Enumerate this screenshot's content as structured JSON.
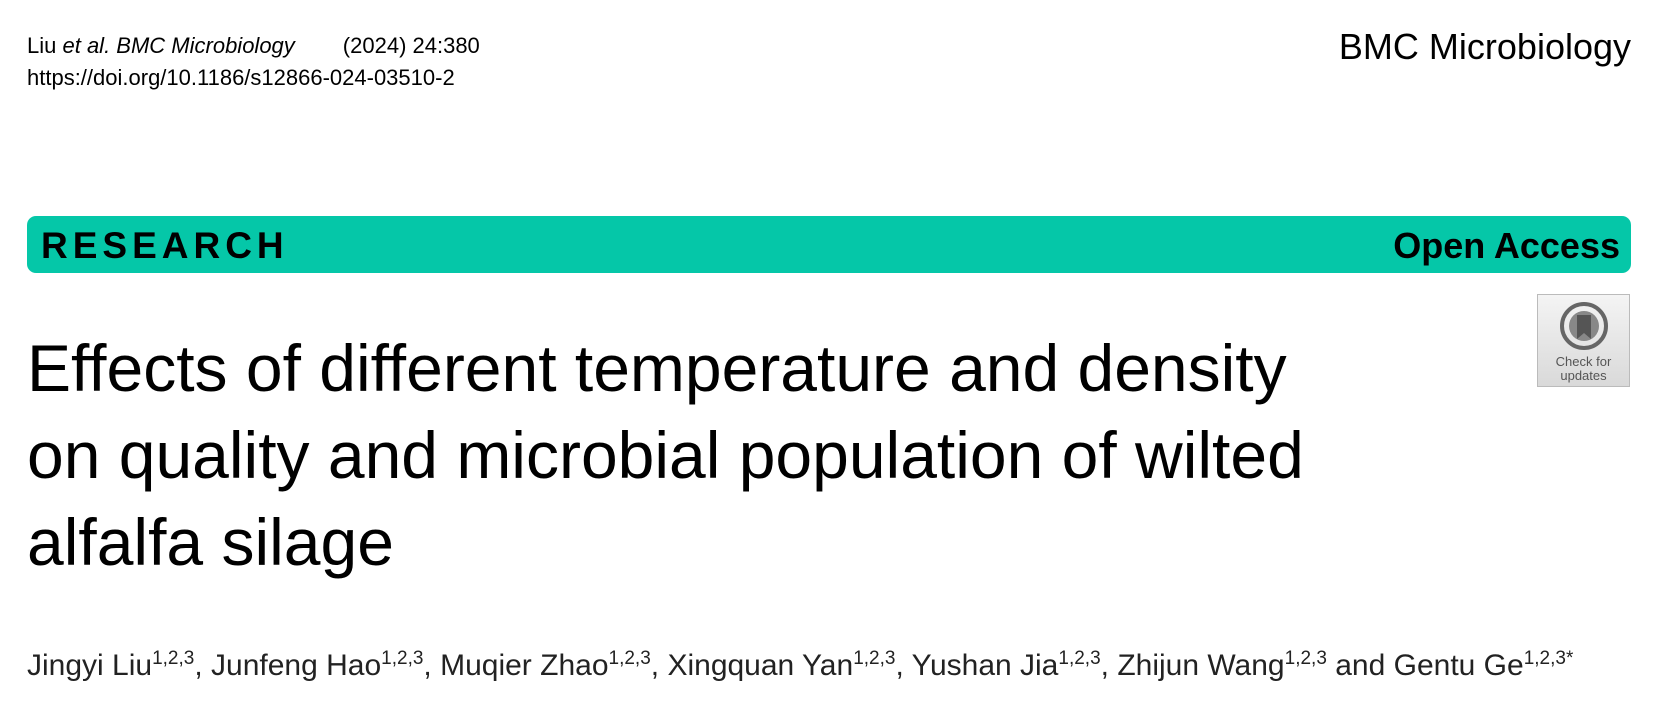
{
  "header": {
    "author_short": "Liu",
    "et_al_journal": "et al. BMC Microbiology",
    "year_volume": "(2024) 24:380",
    "doi": "https://doi.org/10.1186/s12866-024-03510-2",
    "journal": "BMC Microbiology"
  },
  "banner": {
    "left": "RESEARCH",
    "right": "Open Access"
  },
  "badge": {
    "line1": "Check for",
    "line2": "updates"
  },
  "title": [
    "Effects of different temperature and density",
    "on quality and microbial population of wilted",
    "alfalfa silage"
  ],
  "authors": {
    "separator": ", ",
    "last_separator": " and ",
    "list": [
      {
        "name": "Jingyi Liu",
        "affiliations": "1,2,3"
      },
      {
        "name": "Junfeng Hao",
        "affiliations": "1,2,3"
      },
      {
        "name": "Muqier Zhao",
        "affiliations": "1,2,3"
      },
      {
        "name": "Xingquan Yan",
        "affiliations": "1,2,3"
      },
      {
        "name": "Yushan Jia",
        "affiliations": "1,2,3"
      },
      {
        "name": "Zhijun Wang",
        "affiliations": "1,2,3"
      },
      {
        "name": "Gentu Ge",
        "affiliations": "1,2,3*"
      }
    ]
  }
}
